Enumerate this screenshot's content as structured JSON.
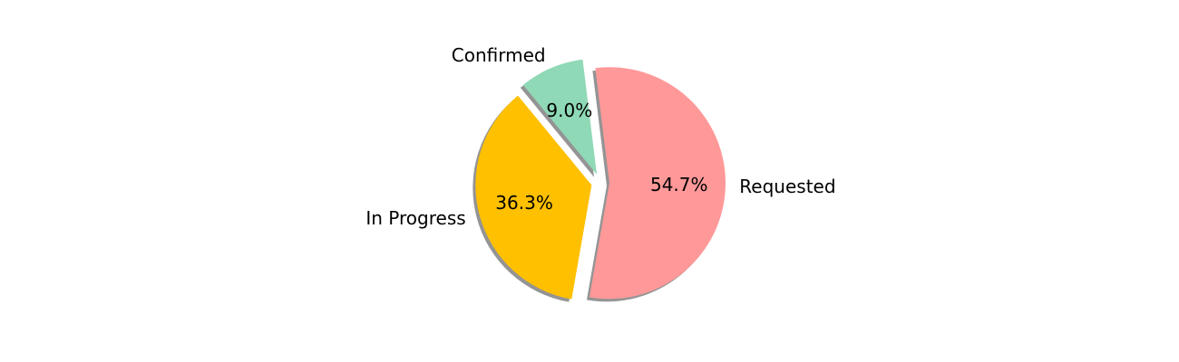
{
  "chart_data": {
    "type": "pie",
    "slices": [
      {
        "label": "Requested",
        "value": 54.7,
        "value_label": "54.7%",
        "color": "#ff9999",
        "exploded": true
      },
      {
        "label": "In Progress",
        "value": 36.3,
        "value_label": "36.3%",
        "color": "#ffc000",
        "exploded": true
      },
      {
        "label": "Confirmed",
        "value": 9.0,
        "value_label": "9.0%",
        "color": "#8fd9b6",
        "exploded": true
      }
    ],
    "shadow": true
  }
}
